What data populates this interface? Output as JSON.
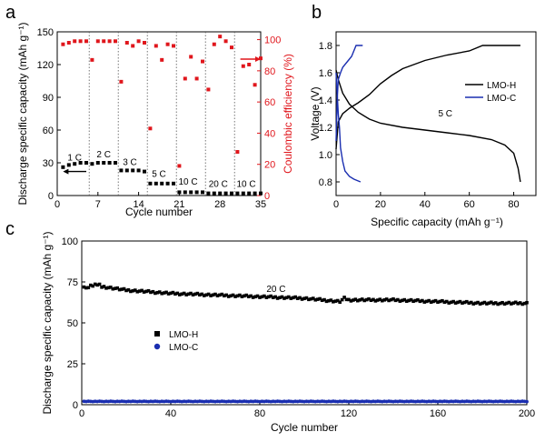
{
  "panels": {
    "a": "a",
    "b": "b",
    "c": "c"
  },
  "colors": {
    "black": "#000000",
    "red": "#e0161c",
    "blue": "#1a2eb0",
    "navy": "#1c2b8c"
  },
  "chart_data": [
    {
      "id": "a",
      "type": "scatter",
      "xlabel": "Cycle number",
      "ylabel_left": "Discharge specific capacity (mAh g⁻¹)",
      "ylabel_right": "Coulombic efficiency (%)",
      "xlim": [
        0,
        35
      ],
      "ylim_left": [
        0,
        150
      ],
      "ylim_right": [
        0,
        105
      ],
      "xticks": [
        0,
        7,
        14,
        21,
        28,
        35
      ],
      "xtick_labels": [
        "0",
        "7",
        "14",
        "21",
        "28",
        "35"
      ],
      "yticks_left": [
        0,
        30,
        60,
        90,
        120,
        150
      ],
      "ytick_labels_left": [
        "0",
        "30",
        "60",
        "90",
        "120",
        "150"
      ],
      "yticks_right": [
        0,
        20,
        40,
        60,
        80,
        100
      ],
      "ytick_labels_right": [
        "0",
        "20",
        "40",
        "60",
        "80",
        "100"
      ],
      "rate_dividers": [
        5.5,
        10.5,
        15.5,
        20.5,
        25.5,
        30.5
      ],
      "rate_labels": [
        {
          "text": "1 C",
          "x": 3,
          "y": 32
        },
        {
          "text": "2 C",
          "x": 8,
          "y": 35
        },
        {
          "text": "3 C",
          "x": 12.5,
          "y": 28
        },
        {
          "text": "5 C",
          "x": 17.5,
          "y": 17
        },
        {
          "text": "10 C",
          "x": 22.5,
          "y": 10
        },
        {
          "text": "20 C",
          "x": 27.7,
          "y": 8
        },
        {
          "text": "10 C",
          "x": 32.5,
          "y": 8
        }
      ],
      "arrow_left": {
        "x_from": 5,
        "x_to": 1,
        "y": 22
      },
      "arrow_right": {
        "x_from": 31.5,
        "x_to": 35,
        "y": 125
      },
      "series": [
        {
          "name": "Discharge capacity",
          "axis": "left",
          "color": "#000000",
          "x": [
            1,
            2,
            3,
            4,
            5,
            6,
            7,
            8,
            9,
            10,
            11,
            12,
            13,
            14,
            15,
            16,
            17,
            18,
            19,
            20,
            21,
            22,
            23,
            24,
            25,
            26,
            27,
            28,
            29,
            30,
            31,
            32,
            33,
            34,
            35
          ],
          "y": [
            26,
            28,
            29,
            30,
            30,
            29,
            30,
            30,
            30,
            30,
            23,
            23,
            23,
            23,
            22,
            11,
            11,
            11,
            11,
            11,
            3,
            3,
            3,
            3,
            3,
            2,
            2,
            2,
            2,
            2,
            2,
            2,
            2,
            2,
            2
          ]
        },
        {
          "name": "Coulombic efficiency",
          "axis": "right",
          "color": "#e0161c",
          "x": [
            1,
            2,
            3,
            4,
            5,
            6,
            7,
            8,
            9,
            10,
            11,
            12,
            13,
            14,
            15,
            16,
            17,
            18,
            19,
            20,
            21,
            22,
            23,
            24,
            25,
            26,
            27,
            28,
            29,
            30,
            31,
            32,
            33,
            34,
            35
          ],
          "y": [
            97,
            98,
            99,
            99,
            99,
            87,
            99,
            99,
            99,
            99,
            73,
            98,
            96,
            99,
            98,
            43,
            96,
            87,
            97,
            96,
            19,
            75,
            89,
            75,
            86,
            68,
            97,
            102,
            99,
            95,
            28,
            83,
            84,
            71,
            88
          ]
        }
      ]
    },
    {
      "id": "b",
      "type": "line",
      "xlabel": "Specific capacity (mAh g⁻¹)",
      "ylabel": "Voltage (V)",
      "xlim": [
        0,
        90
      ],
      "ylim": [
        0.7,
        1.9
      ],
      "xticks": [
        0,
        20,
        40,
        60,
        80
      ],
      "xtick_labels": [
        "0",
        "20",
        "40",
        "60",
        "80"
      ],
      "yticks": [
        0.8,
        1.0,
        1.2,
        1.4,
        1.6,
        1.8
      ],
      "ytick_labels": [
        "0.8",
        "1.0",
        "1.2",
        "1.4",
        "1.6",
        "1.8"
      ],
      "annotation": {
        "text": "5 C",
        "x": 46,
        "y": 1.28
      },
      "legend": [
        "LMO-H",
        "LMO-C"
      ],
      "legend_position": "top-right",
      "series": [
        {
          "name": "LMO-H",
          "color": "#000000",
          "curves": [
            {
              "x": [
                0,
                1,
                3,
                6,
                10,
                15,
                20,
                25,
                30,
                40,
                50,
                60,
                66,
                70,
                83
              ],
              "y": [
                1.04,
                1.24,
                1.3,
                1.34,
                1.38,
                1.44,
                1.52,
                1.58,
                1.63,
                1.69,
                1.73,
                1.76,
                1.8,
                1.8,
                1.8
              ]
            },
            {
              "x": [
                0,
                1,
                3,
                6,
                10,
                15,
                20,
                30,
                40,
                50,
                60,
                70,
                76,
                80,
                82,
                83
              ],
              "y": [
                1.62,
                1.55,
                1.45,
                1.37,
                1.31,
                1.26,
                1.23,
                1.2,
                1.18,
                1.16,
                1.14,
                1.11,
                1.07,
                1.01,
                0.9,
                0.8
              ]
            }
          ]
        },
        {
          "name": "LMO-C",
          "color": "#1a2eb0",
          "curves": [
            {
              "x": [
                0,
                0.5,
                1,
                2,
                3,
                5,
                7,
                9,
                10,
                12
              ],
              "y": [
                1.1,
                1.4,
                1.55,
                1.6,
                1.64,
                1.68,
                1.72,
                1.8,
                1.8,
                1.8
              ]
            },
            {
              "x": [
                0,
                0.5,
                1,
                1.5,
                2,
                3,
                4,
                6,
                8,
                11
              ],
              "y": [
                1.6,
                1.45,
                1.3,
                1.2,
                1.05,
                0.95,
                0.88,
                0.84,
                0.82,
                0.8
              ]
            }
          ]
        }
      ]
    },
    {
      "id": "c",
      "type": "scatter",
      "xlabel": "Cycle number",
      "ylabel": "Discharge specific capacity (mAh g⁻¹)",
      "xlim": [
        0,
        200
      ],
      "ylim": [
        0,
        100
      ],
      "xticks": [
        0,
        40,
        80,
        120,
        160,
        200
      ],
      "xtick_labels": [
        "0",
        "40",
        "80",
        "120",
        "160",
        "200"
      ],
      "yticks": [
        0,
        25,
        50,
        75,
        100
      ],
      "ytick_labels": [
        "0",
        "25",
        "50",
        "75",
        "100"
      ],
      "annotation": {
        "text": "20 C",
        "x": 83,
        "y": 69
      },
      "legend": [
        "LMO-H",
        "LMO-C"
      ],
      "legend_position": "center-left",
      "series": [
        {
          "name": "LMO-H",
          "color": "#000000",
          "marker": "square",
          "points": [
            [
              1,
              72
            ],
            [
              2,
              71
            ],
            [
              3,
              72
            ],
            [
              4,
              73
            ],
            [
              5,
              72
            ],
            [
              6,
              74
            ],
            [
              7,
              73
            ],
            [
              8,
              73
            ],
            [
              9,
              72
            ],
            [
              10,
              72
            ],
            [
              20,
              70
            ],
            [
              40,
              68
            ],
            [
              60,
              67
            ],
            [
              80,
              66
            ],
            [
              100,
              65
            ],
            [
              116,
              63
            ],
            [
              118,
              65
            ],
            [
              120,
              64
            ],
            [
              140,
              64
            ],
            [
              160,
              63
            ],
            [
              180,
              62
            ],
            [
              200,
              62
            ]
          ]
        },
        {
          "name": "LMO-C",
          "color": "#1a2eb0",
          "marker": "circle",
          "value_start": 2,
          "value_end": 2
        }
      ]
    }
  ]
}
